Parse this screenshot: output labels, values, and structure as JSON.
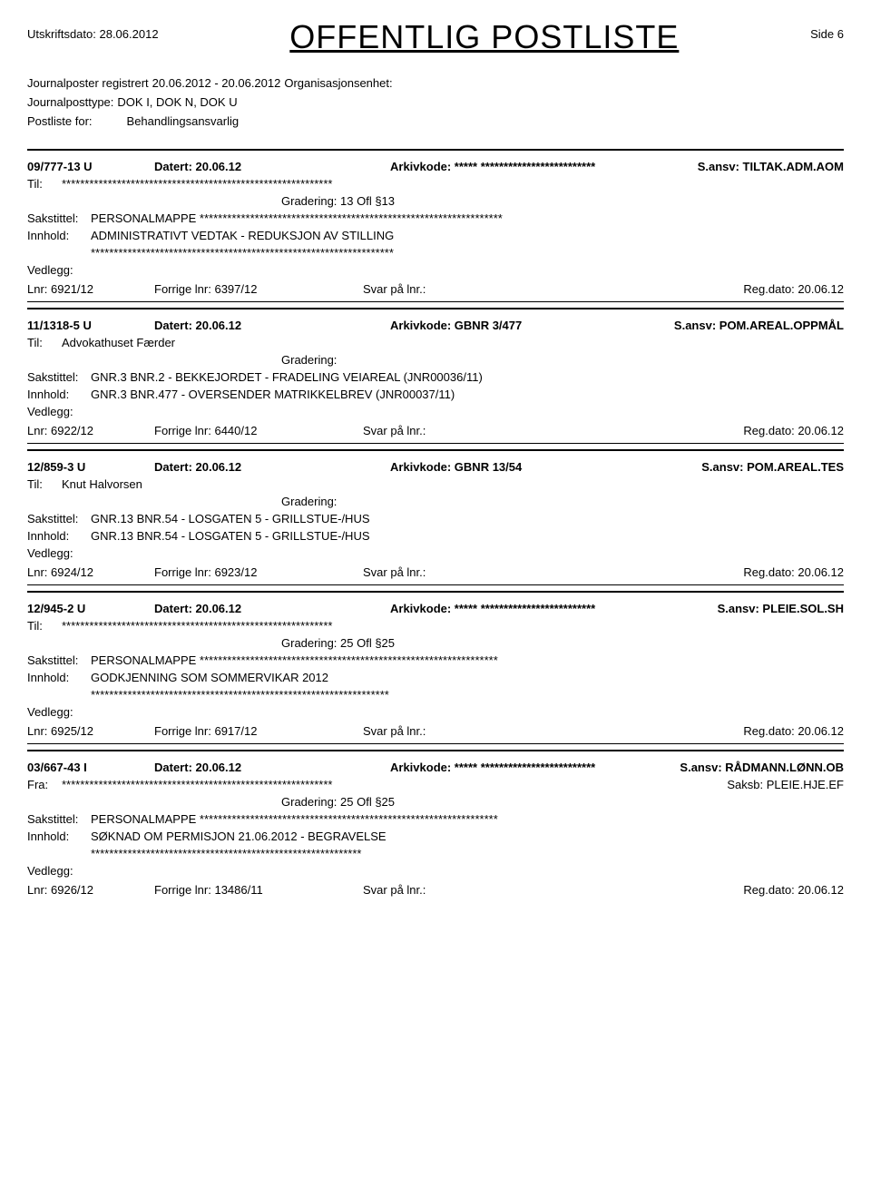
{
  "header": {
    "print_date_label": "Utskriftsdato:",
    "print_date": "28.06.2012",
    "title": "OFFENTLIG POSTLISTE",
    "page_label": "Side",
    "page_number": "6"
  },
  "meta": {
    "registered_label": "Journalposter registrert",
    "registered_range": "20.06.2012 - 20.06.2012",
    "org_unit_label": "Organisasjonsenhet:",
    "posttype_label": "Journalposttype:",
    "posttype_value": "DOK I, DOK N, DOK U",
    "postliste_label": "Postliste for:",
    "postliste_value": "Behandlingsansvarlig"
  },
  "labels": {
    "datert": "Datert:",
    "arkivkode": "Arkivkode:",
    "sansv": "S.ansv:",
    "til": "Til:",
    "fra": "Fra:",
    "saksb": "Saksb:",
    "gradering": "Gradering:",
    "sakstittel": "Sakstittel:",
    "innhold": "Innhold:",
    "vedlegg": "Vedlegg:",
    "lnr": "Lnr:",
    "forrige": "Forrige lnr:",
    "svar": "Svar på lnr.:",
    "regdato": "Reg.dato:"
  },
  "entries": [
    {
      "caseid": "09/777-13 U",
      "datert": "20.06.12",
      "arkivkode": "***** *************************",
      "sansv": "TILTAK.ADM.AOM",
      "party_label": "Til:",
      "party_value": "***********************************************************",
      "saksb": null,
      "gradering": "13 Ofl §13",
      "sakstittel": "PERSONALMAPPE  ******************************************************************",
      "innhold": "ADMINISTRATIVT VEDTAK - REDUKSJON AV STILLING",
      "innhold_extra": "******************************************************************",
      "lnr": "6921/12",
      "forrige": "6397/12",
      "svar": "",
      "regdato": "20.06.12"
    },
    {
      "caseid": "11/1318-5 U",
      "datert": "20.06.12",
      "arkivkode": "GBNR 3/477",
      "sansv": "POM.AREAL.OPPMÅL",
      "party_label": "Til:",
      "party_value": "Advokathuset Færder",
      "saksb": null,
      "gradering": "",
      "sakstittel": "GNR.3 BNR.2 - BEKKEJORDET - FRADELING VEIAREAL  (JNR00036/11)",
      "innhold": "GNR.3 BNR.477 - OVERSENDER MATRIKKELBREV  (JNR00037/11)",
      "innhold_extra": null,
      "lnr": "6922/12",
      "forrige": "6440/12",
      "svar": "",
      "regdato": "20.06.12"
    },
    {
      "caseid": "12/859-3 U",
      "datert": "20.06.12",
      "arkivkode": "GBNR 13/54",
      "sansv": "POM.AREAL.TES",
      "party_label": "Til:",
      "party_value": "Knut Halvorsen",
      "saksb": null,
      "gradering": "",
      "sakstittel": "GNR.13 BNR.54 - LOSGATEN 5 - GRILLSTUE-/HUS",
      "innhold": "GNR.13 BNR.54 - LOSGATEN 5 - GRILLSTUE-/HUS",
      "innhold_extra": null,
      "lnr": "6924/12",
      "forrige": "6923/12",
      "svar": "",
      "regdato": "20.06.12"
    },
    {
      "caseid": "12/945-2 U",
      "datert": "20.06.12",
      "arkivkode": "***** *************************",
      "sansv": "PLEIE.SOL.SH",
      "party_label": "Til:",
      "party_value": "***********************************************************",
      "saksb": null,
      "gradering": "25 Ofl §25",
      "sakstittel": "PERSONALMAPPE  *****************************************************************",
      "innhold": "GODKJENNING SOM SOMMERVIKAR 2012",
      "innhold_extra": "*****************************************************************",
      "lnr": "6925/12",
      "forrige": "6917/12",
      "svar": "",
      "regdato": "20.06.12"
    },
    {
      "caseid": "03/667-43 I",
      "datert": "20.06.12",
      "arkivkode": "***** *************************",
      "sansv": "RÅDMANN.LØNN.OB",
      "party_label": "Fra:",
      "party_value": "***********************************************************",
      "saksb": "PLEIE.HJE.EF",
      "gradering": "25 Ofl §25",
      "sakstittel": "PERSONALMAPPE  *****************************************************************",
      "innhold": "SØKNAD OM PERMISJON 21.06.2012 - BEGRAVELSE",
      "innhold_extra": "***********************************************************",
      "lnr": "6926/12",
      "forrige": "13486/11",
      "svar": "",
      "regdato": "20.06.12"
    }
  ]
}
